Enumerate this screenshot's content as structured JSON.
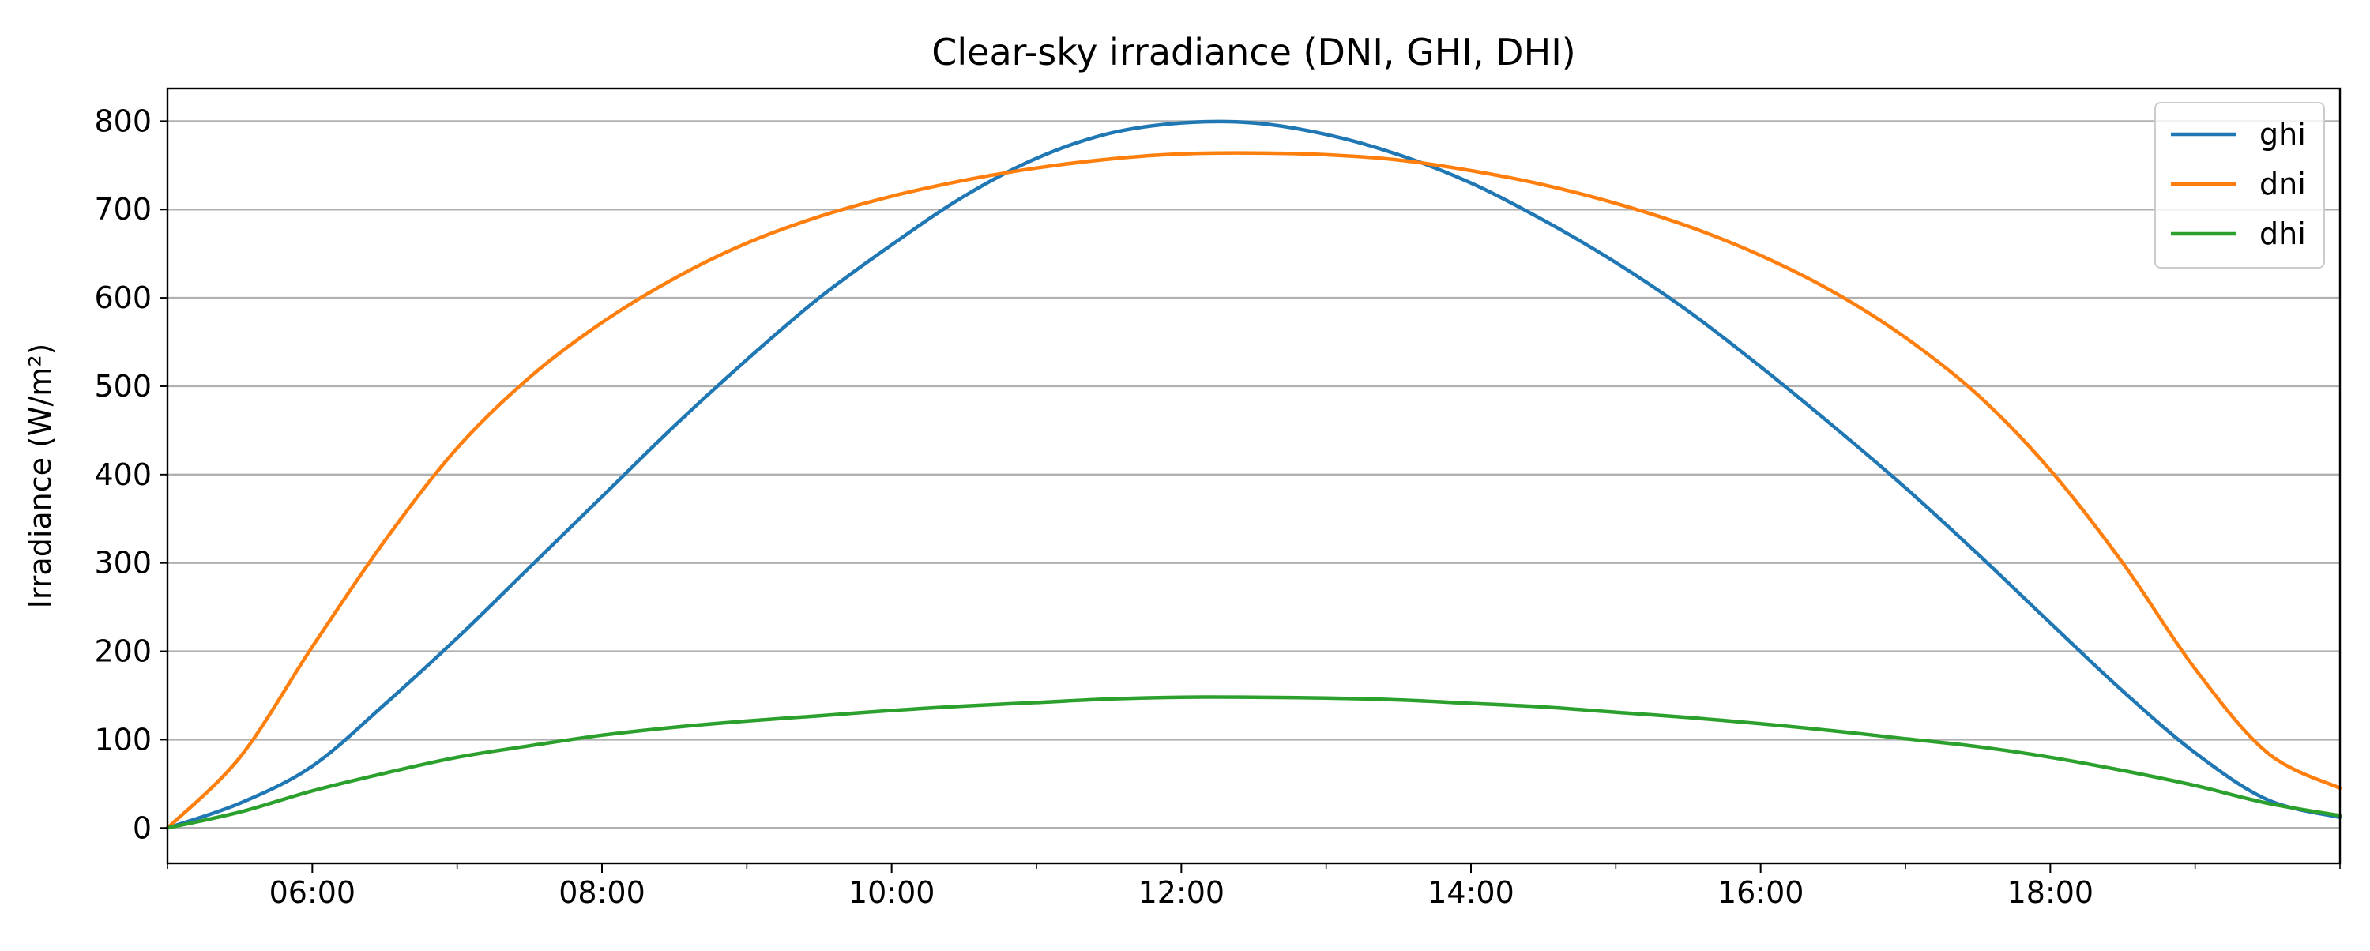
{
  "chart_data": {
    "type": "line",
    "title": "Clear-sky irradiance (DNI, GHI, DHI)",
    "xlabel": "",
    "ylabel": "Irradiance (W/m²)",
    "x_range": [
      "05:00",
      "20:00"
    ],
    "ylim": [
      -40,
      837
    ],
    "y_ticks": [
      0,
      100,
      200,
      300,
      400,
      500,
      600,
      700,
      800
    ],
    "x_ticks": [
      "06:00",
      "08:00",
      "10:00",
      "12:00",
      "14:00",
      "16:00",
      "18:00"
    ],
    "grid": "horizontal",
    "legend_position": "top-right",
    "x": [
      "05:00",
      "05:30",
      "06:00",
      "06:30",
      "07:00",
      "07:30",
      "08:00",
      "08:30",
      "09:00",
      "09:30",
      "10:00",
      "10:30",
      "11:00",
      "11:30",
      "12:00",
      "12:30",
      "13:00",
      "13:30",
      "14:00",
      "14:30",
      "15:00",
      "15:30",
      "16:00",
      "16:30",
      "17:00",
      "17:30",
      "18:00",
      "18:30",
      "19:00",
      "19:30",
      "20:00"
    ],
    "series": [
      {
        "name": "ghi",
        "color": "#1f77b4",
        "values": [
          0,
          28,
          70,
          140,
          215,
          295,
          375,
          455,
          530,
          600,
          660,
          715,
          758,
          786,
          798,
          798,
          785,
          762,
          730,
          688,
          640,
          585,
          522,
          455,
          385,
          310,
          232,
          155,
          85,
          32,
          12
        ]
      },
      {
        "name": "dni",
        "color": "#ff7f0e",
        "values": [
          0,
          80,
          205,
          325,
          430,
          510,
          572,
          622,
          662,
          692,
          715,
          733,
          747,
          757,
          763,
          764,
          762,
          756,
          744,
          728,
          707,
          681,
          648,
          607,
          555,
          490,
          405,
          300,
          180,
          85,
          45
        ]
      },
      {
        "name": "dhi",
        "color": "#2ca02c",
        "values": [
          0,
          18,
          42,
          62,
          80,
          93,
          105,
          114,
          121,
          127,
          133,
          138,
          142,
          146,
          148,
          148,
          147,
          145,
          141,
          137,
          131,
          125,
          118,
          110,
          101,
          92,
          80,
          65,
          48,
          28,
          14
        ]
      }
    ]
  }
}
